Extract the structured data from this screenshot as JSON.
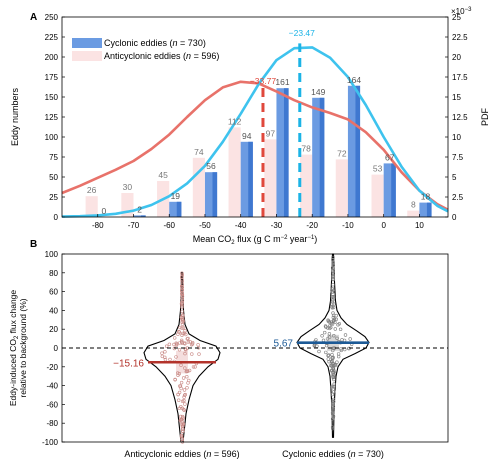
{
  "colors": {
    "cyclonic_bar": "#6b9be2",
    "cyclonic_bar_dark": "#3f78d0",
    "anticyclonic_bar": "#fbe3e3",
    "anticyclonic_curve": "#e8726a",
    "cyclonic_curve": "#3ec3ee",
    "anticyclonic_mean": "#e0483c",
    "cyclonic_mean": "#1bb3e6",
    "anticyclonic_median": "#b3332b",
    "cyclonic_median": "#1c5a96"
  },
  "chart_data": [
    {
      "panel_label": "A",
      "type": "bar",
      "xlabel": "Mean CO2 flux (g C m−2 year−1)",
      "ylabel": "Eddy numbers",
      "ylabel_right": "PDF",
      "right_axis_exponent": "×10−3",
      "xlim": [
        -90,
        18
      ],
      "ylim": [
        0,
        250
      ],
      "ylim_right": [
        0,
        25
      ],
      "x_ticks": [
        -80,
        -70,
        -60,
        -50,
        -40,
        -30,
        -20,
        -10,
        0,
        10
      ],
      "y_ticks": [
        0,
        25,
        50,
        75,
        100,
        125,
        150,
        175,
        200,
        225,
        250
      ],
      "y_ticks_right": [
        0,
        2.5,
        5,
        7.5,
        10,
        12.5,
        15,
        17.5,
        20,
        22.5,
        25
      ],
      "legend_position": "top-left",
      "categories": [
        -80,
        -70,
        -60,
        -50,
        -40,
        -30,
        -20,
        -10,
        0,
        10
      ],
      "series": [
        {
          "name": "Cyclonic eddies (n = 730)",
          "values": [
            0,
            2,
            19,
            56,
            94,
            161,
            149,
            164,
            67,
            18
          ]
        },
        {
          "name": "Anticyclonic eddies (n = 596)",
          "values": [
            26,
            30,
            45,
            74,
            112,
            97,
            78,
            72,
            53,
            8
          ]
        }
      ],
      "pdf_curves": [
        {
          "series": "Anticyclonic eddies (n = 596)",
          "x": [
            -90,
            -85,
            -80,
            -75,
            -70,
            -65,
            -60,
            -55,
            -50,
            -45,
            -40,
            -35,
            -30,
            -25,
            -20,
            -15,
            -10,
            -5,
            0,
            5,
            10,
            15,
            18
          ],
          "y": [
            3.0,
            3.9,
            4.9,
            5.9,
            7.0,
            8.5,
            10.3,
            12.5,
            14.6,
            16.2,
            16.9,
            16.7,
            15.7,
            14.6,
            13.7,
            13.0,
            12.2,
            10.6,
            8.4,
            5.6,
            3.3,
            1.6,
            0.9
          ]
        },
        {
          "series": "Cyclonic eddies (n = 730)",
          "x": [
            -90,
            -85,
            -80,
            -75,
            -70,
            -65,
            -60,
            -55,
            -50,
            -45,
            -40,
            -35,
            -30,
            -25,
            -20,
            -15,
            -10,
            -5,
            0,
            5,
            10,
            15,
            18
          ],
          "y": [
            0.05,
            0.1,
            0.2,
            0.4,
            0.8,
            1.5,
            2.6,
            4.2,
            6.4,
            9.4,
            12.9,
            16.6,
            19.6,
            21.1,
            21.2,
            19.9,
            17.5,
            14.0,
            10.0,
            6.3,
            3.3,
            1.4,
            0.7
          ]
        }
      ],
      "mean_lines": [
        {
          "series": "Anticyclonic eddies (n = 596)",
          "x": -33.77,
          "label": "−33.77"
        },
        {
          "series": "Cyclonic eddies (n = 730)",
          "x": -23.47,
          "label": "−23.47"
        }
      ]
    },
    {
      "panel_label": "B",
      "type": "violin",
      "ylabel": "Eddy-induced CO2 flux change relative to background (%)",
      "ylim": [
        -100,
        100
      ],
      "y_ticks": [
        -100,
        -80,
        -60,
        -40,
        -20,
        0,
        20,
        40,
        60,
        80,
        100
      ],
      "reference_line_y": 0,
      "categories": [
        "Anticyclonic eddies (n = 596)",
        "Cyclonic eddies (n = 730)"
      ],
      "medians": [
        -15.16,
        5.67
      ],
      "median_labels": [
        "−15.16",
        "5.67"
      ],
      "distribution_ranges": [
        [
          -100,
          80
        ],
        [
          -95,
          100
        ]
      ]
    }
  ],
  "legend": {
    "cyclonic": "Cyclonic eddies (",
    "anticyclonic": "Anticyclonic eddies (",
    "n_italic": "n",
    "cyclonic_count": " = 730)",
    "anticyclonic_count": " = 596)"
  },
  "text": {
    "panel_a_label": "A",
    "panel_b_label": "B",
    "a_xlabel_pre": "Mean CO",
    "a_xlabel_sub": "2",
    "a_xlabel_mid": " flux (g C m",
    "a_xlabel_sup": "−2",
    "a_xlabel_mid2": " year",
    "a_xlabel_sup2": "−1",
    "a_xlabel_end": ")",
    "a_ylabel": "Eddy numbers",
    "a_ylabel_right": "PDF",
    "a_exp_base": "×10",
    "a_exp_sup": "−3",
    "b_ylabel_line1_pre": "Eddy-induced CO",
    "b_ylabel_line1_sub": "2",
    "b_ylabel_line1_post": " flux change",
    "b_ylabel_line2": "relative to background (%)",
    "b_cat1_pre": "Anticyclonic eddies (",
    "b_cat2_pre": "Cyclonic eddies (",
    "b_n": "n",
    "b_cat1_post": " = 596)",
    "b_cat2_post": " = 730)"
  }
}
